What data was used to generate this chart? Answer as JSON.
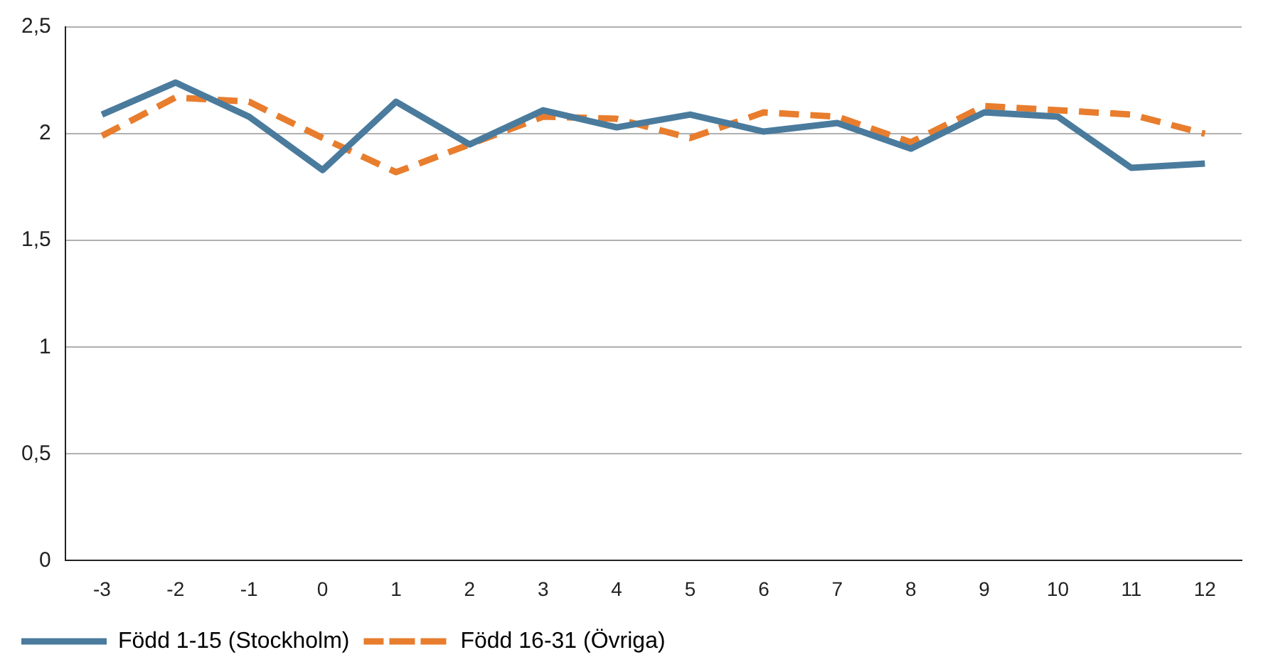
{
  "chart_data": {
    "type": "line",
    "categories": [
      "-3",
      "-2",
      "-1",
      "0",
      "1",
      "2",
      "3",
      "4",
      "5",
      "6",
      "7",
      "8",
      "9",
      "10",
      "11",
      "12"
    ],
    "series": [
      {
        "name": "Född 1-15 (Stockholm)",
        "color": "#4a7b9d",
        "line_style": "solid",
        "values": [
          2.09,
          2.24,
          2.08,
          1.83,
          2.15,
          1.95,
          2.11,
          2.03,
          2.09,
          2.01,
          2.05,
          1.93,
          2.1,
          2.08,
          1.84,
          1.86
        ]
      },
      {
        "name": "Född 16-31 (Övriga)",
        "color": "#e87d2e",
        "line_style": "dashed",
        "values": [
          1.99,
          2.17,
          2.15,
          1.98,
          1.82,
          1.95,
          2.08,
          2.07,
          1.98,
          2.1,
          2.08,
          1.96,
          2.13,
          2.11,
          2.09,
          2.0
        ]
      }
    ],
    "ylim": [
      0,
      2.5
    ],
    "yticks": [
      {
        "value": 0,
        "label": "0"
      },
      {
        "value": 0.5,
        "label": "0,5"
      },
      {
        "value": 1,
        "label": "1"
      },
      {
        "value": 1.5,
        "label": "1,5"
      },
      {
        "value": 2,
        "label": "2"
      },
      {
        "value": 2.5,
        "label": "2,5"
      }
    ],
    "grid": "y",
    "legend": "bottom",
    "marker": "none"
  }
}
